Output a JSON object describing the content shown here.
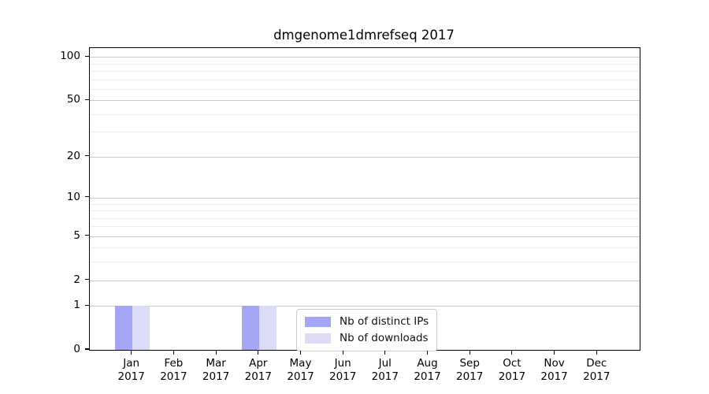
{
  "chart_data": {
    "type": "bar",
    "title": "dmgenome1dmrefseq 2017",
    "categories": [
      "Jan",
      "Feb",
      "Mar",
      "Apr",
      "May",
      "Jun",
      "Jul",
      "Aug",
      "Sep",
      "Oct",
      "Nov",
      "Dec"
    ],
    "x_year": "2017",
    "series": [
      {
        "name": "Nb of distinct IPs",
        "color": "#a5a5f5",
        "values": [
          1,
          0,
          0,
          1,
          0,
          0,
          0,
          0,
          0,
          0,
          0,
          0
        ]
      },
      {
        "name": "Nb of downloads",
        "color": "#dcdcf9",
        "values": [
          1,
          0,
          0,
          1,
          0,
          0,
          0,
          0,
          0,
          0,
          0,
          0
        ]
      }
    ],
    "y_axis": {
      "scale": "log1p",
      "ylim": [
        0,
        115
      ],
      "major_ticks": [
        0,
        1,
        2,
        5,
        10,
        20,
        50,
        100
      ],
      "minor_gridlines": [
        3,
        4,
        6,
        7,
        8,
        9,
        30,
        40,
        60,
        70,
        80,
        90
      ]
    },
    "grid": true,
    "legend": {
      "position": "lower-center"
    },
    "colors": {
      "grid_major": "#c9c9c9",
      "grid_minor": "#ededed",
      "spine": "#000000",
      "background": "#ffffff"
    }
  }
}
